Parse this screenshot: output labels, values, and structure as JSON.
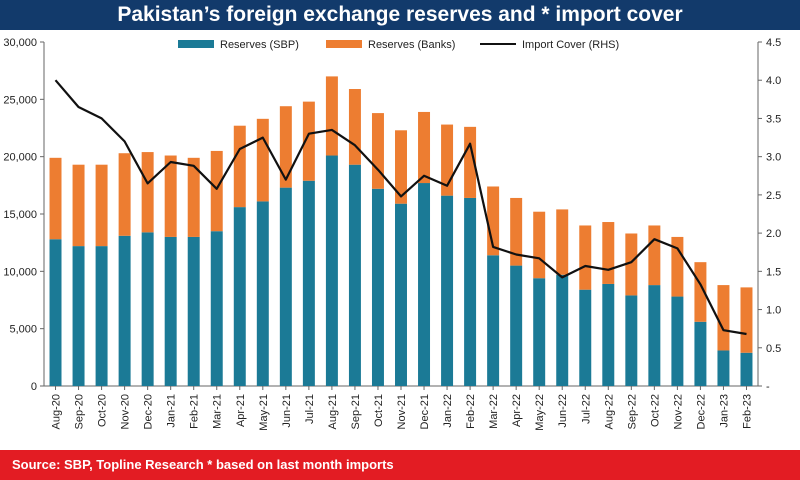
{
  "title": "Pakistan’s foreign exchange reserves and * import cover",
  "source": "Source: SBP, Topline Research * based on last month imports",
  "chart_data": {
    "type": "bar",
    "stacked": true,
    "categories": [
      "Aug-20",
      "Sep-20",
      "Oct-20",
      "Nov-20",
      "Dec-20",
      "Jan-21",
      "Feb-21",
      "Mar-21",
      "Apr-21",
      "May-21",
      "Jun-21",
      "Jul-21",
      "Aug-21",
      "Sep-21",
      "Oct-21",
      "Nov-21",
      "Dec-21",
      "Jan-22",
      "Feb-22",
      "Mar-22",
      "Apr-22",
      "May-22",
      "Jun-22",
      "Jul-22",
      "Aug-22",
      "Sep-22",
      "Oct-22",
      "Nov-22",
      "Dec-22",
      "Jan-23",
      "Feb-23"
    ],
    "series": [
      {
        "name": "Reserves (SBP)",
        "color": "#1b7a96",
        "axis": "left",
        "values": [
          12800,
          12200,
          12200,
          13100,
          13400,
          13000,
          13000,
          13500,
          15600,
          16100,
          17300,
          17900,
          20100,
          19300,
          17200,
          15900,
          17700,
          16600,
          16400,
          11400,
          10500,
          9400,
          9700,
          8400,
          8900,
          7900,
          8800,
          7800,
          5600,
          3100,
          2900
        ]
      },
      {
        "name": "Reserves (Banks)",
        "color": "#ed7d31",
        "axis": "left",
        "values": [
          7100,
          7100,
          7100,
          7200,
          7000,
          7100,
          6900,
          7000,
          7100,
          7200,
          7100,
          6900,
          6900,
          6600,
          6600,
          6400,
          6200,
          6200,
          6200,
          6000,
          5900,
          5800,
          5700,
          5600,
          5400,
          5400,
          5200,
          5200,
          5200,
          5700,
          5700
        ]
      },
      {
        "name": "Import Cover (RHS)",
        "color": "#111111",
        "axis": "right",
        "type": "line",
        "values": [
          4.0,
          3.65,
          3.5,
          3.2,
          2.65,
          2.93,
          2.88,
          2.58,
          3.1,
          3.25,
          2.7,
          3.3,
          3.35,
          3.15,
          2.83,
          2.48,
          2.75,
          2.62,
          3.17,
          1.82,
          1.72,
          1.67,
          1.42,
          1.57,
          1.52,
          1.62,
          1.92,
          1.8,
          1.33,
          0.73,
          0.68
        ]
      }
    ],
    "left_axis": {
      "ylim": [
        0,
        30000
      ],
      "ticks": [
        0,
        5000,
        10000,
        15000,
        20000,
        25000,
        30000
      ],
      "tick_labels": [
        "0",
        "5,000",
        "10,000",
        "15,000",
        "20,000",
        "25,000",
        "30,000"
      ]
    },
    "right_axis": {
      "ylim": [
        0,
        4.5
      ],
      "ticks": [
        0,
        0.5,
        1.0,
        1.5,
        2.0,
        2.5,
        3.0,
        3.5,
        4.0,
        4.5
      ],
      "tick_labels": [
        "-",
        "0.5",
        "1.0",
        "1.5",
        "2.0",
        "2.5",
        "3.0",
        "3.5",
        "4.0",
        "4.5"
      ]
    },
    "grid": false,
    "legend_position": "top"
  }
}
